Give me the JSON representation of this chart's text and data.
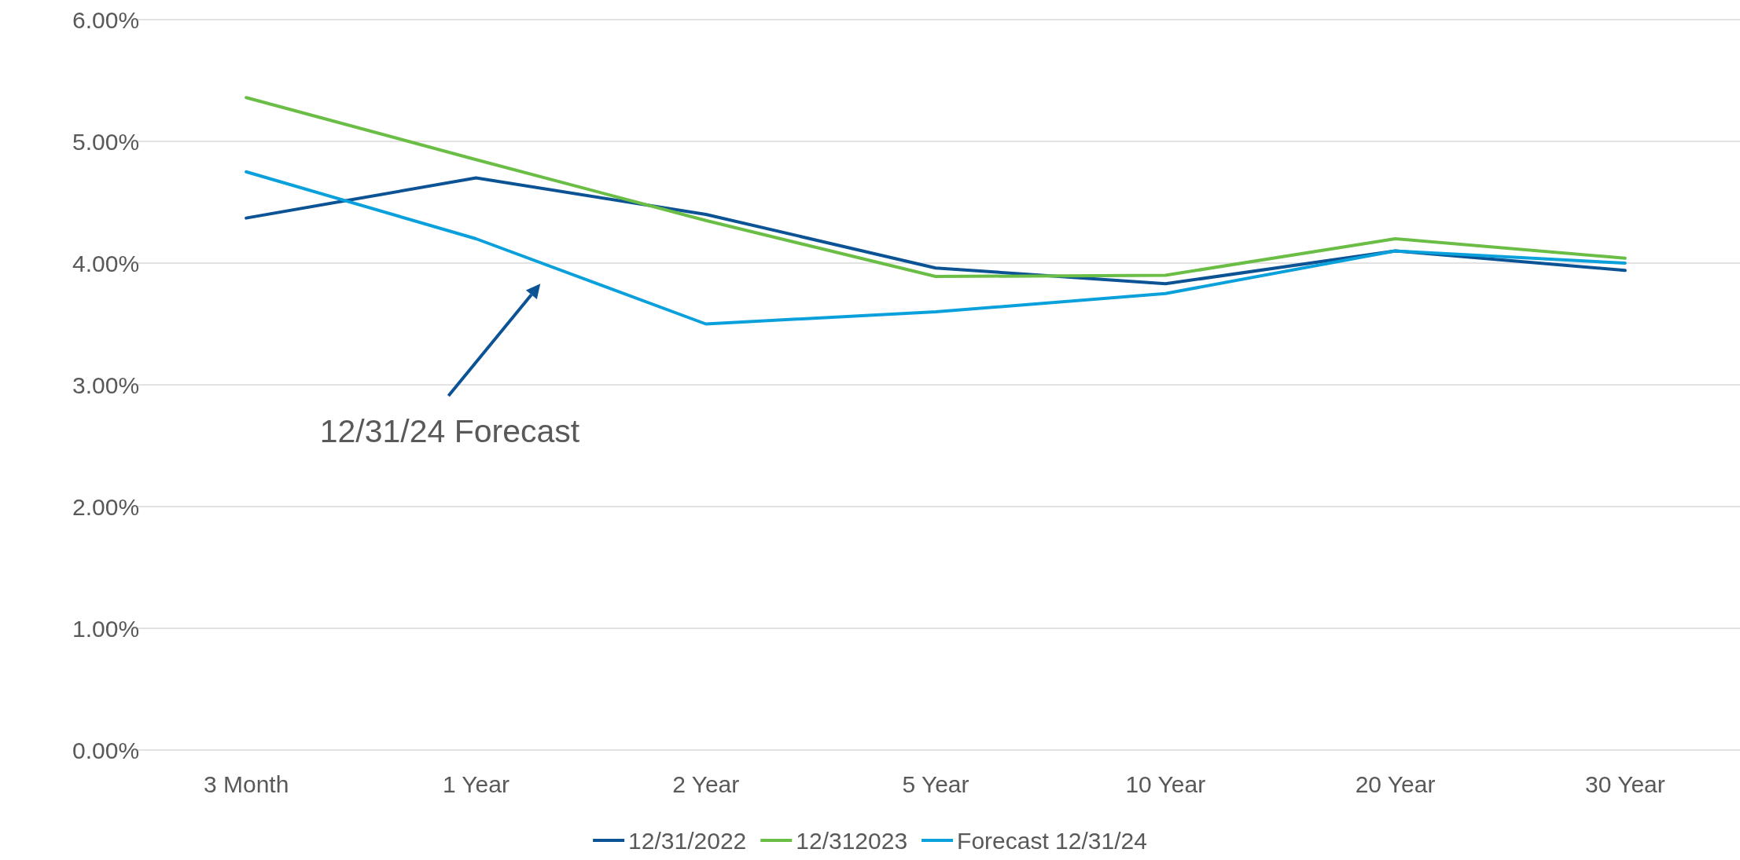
{
  "chart_data": {
    "type": "line",
    "categories": [
      "3 Month",
      "1 Year",
      "2 Year",
      "5 Year",
      "10 Year",
      "20 Year",
      "30 Year"
    ],
    "series": [
      {
        "name": "12/31/2022",
        "color": "#0b5394",
        "values": [
          4.37,
          4.7,
          4.4,
          3.96,
          3.83,
          4.1,
          3.94
        ]
      },
      {
        "name": "12/312023",
        "color": "#6abd45",
        "values": [
          5.36,
          4.85,
          4.35,
          3.89,
          3.9,
          4.2,
          4.04
        ]
      },
      {
        "name": "Forecast 12/31/24",
        "color": "#0aa0dc",
        "values": [
          4.75,
          4.2,
          3.5,
          3.6,
          3.75,
          4.1,
          4.0
        ]
      }
    ],
    "ylim": [
      0,
      6
    ],
    "yticks": [
      {
        "value": 0,
        "label": "0.00%"
      },
      {
        "value": 1,
        "label": "1.00%"
      },
      {
        "value": 2,
        "label": "2.00%"
      },
      {
        "value": 3,
        "label": "3.00%"
      },
      {
        "value": 4,
        "label": "4.00%"
      },
      {
        "value": 5,
        "label": "5.00%"
      },
      {
        "value": 6,
        "label": "6.00%"
      }
    ],
    "annotations": [
      "12/31/24 Forecast"
    ],
    "grid": "y",
    "legend": "bottom",
    "marker": "none",
    "line_style": "solid"
  }
}
